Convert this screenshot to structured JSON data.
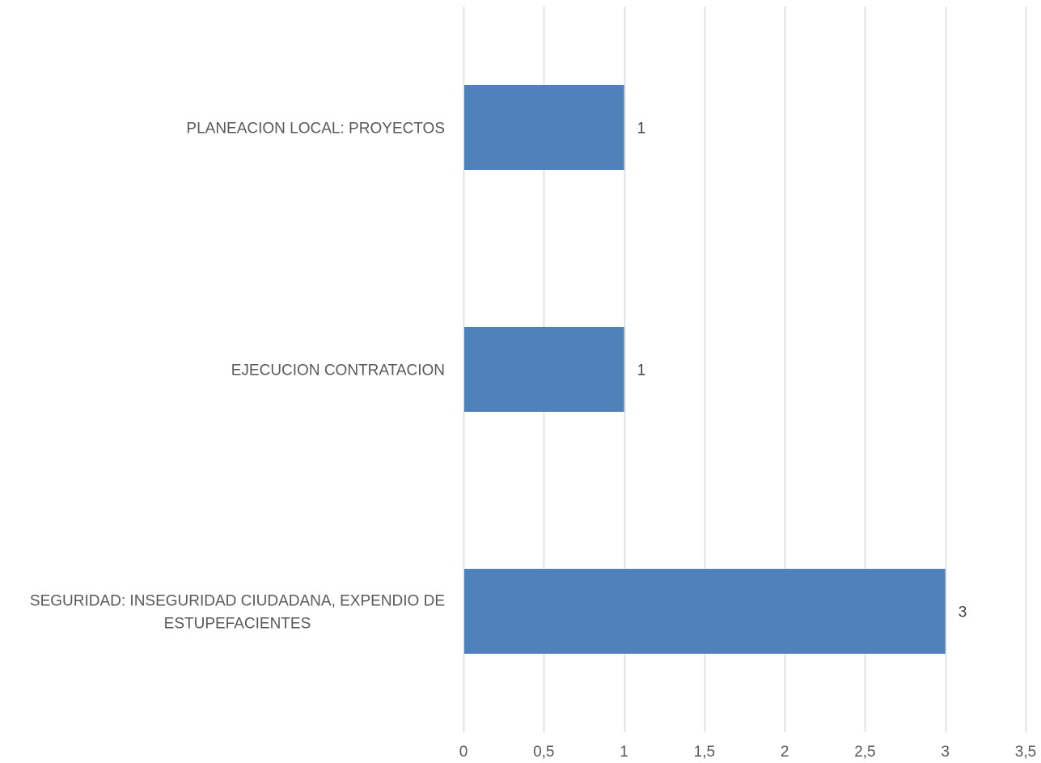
{
  "chart_data": {
    "type": "bar",
    "orientation": "horizontal",
    "categories": [
      "PLANEACION LOCAL: PROYECTOS",
      "EJECUCION CONTRATACION",
      "SEGURIDAD: INSEGURIDAD CIUDADANA,  EXPENDIO DE ESTUPEFACIENTES"
    ],
    "category_label_lines": [
      [
        "PLANEACION LOCAL: PROYECTOS"
      ],
      [
        "EJECUCION CONTRATACION"
      ],
      [
        "SEGURIDAD: INSEGURIDAD CIUDADANA,  EXPENDIO DE",
        "ESTUPEFACIENTES"
      ]
    ],
    "values": [
      1,
      1,
      3
    ],
    "data_labels": [
      "1",
      "1",
      "3"
    ],
    "title": "",
    "xlabel": "",
    "ylabel": "",
    "xlim": [
      0,
      3.5
    ],
    "x_ticks": [
      0,
      0.5,
      1,
      1.5,
      2,
      2.5,
      3,
      3.5
    ],
    "x_tick_labels": [
      "0",
      "0,5",
      "1",
      "1,5",
      "2",
      "2,5",
      "3",
      "3,5"
    ],
    "grid": "vertical",
    "legend": "none",
    "colors": {
      "bar": "#4f81bd",
      "grid": "#d9d9d9",
      "text": "#595959"
    }
  }
}
